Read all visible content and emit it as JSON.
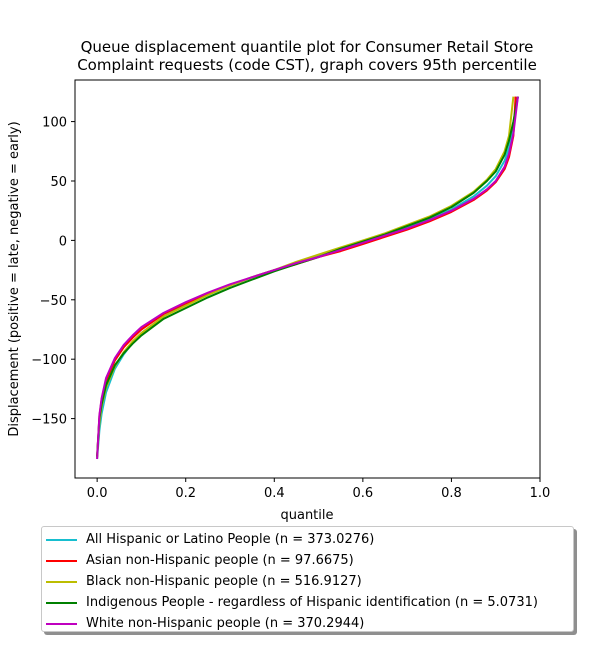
{
  "chart_data": {
    "type": "line",
    "title": "Queue displacement quantile plot for Consumer Retail Store",
    "subtitle": "Complaint  requests (code CST), graph covers 95th percentile",
    "xlabel": "quantile",
    "ylabel": "Displacement (positive = late, negative = early)",
    "xlim": [
      -0.05,
      1.0
    ],
    "ylim": [
      -200,
      135
    ],
    "xticks": [
      "0.0",
      "0.2",
      "0.4",
      "0.6",
      "0.8",
      "1.0"
    ],
    "yticks": [
      "100",
      "50",
      "0",
      "−50",
      "−100",
      "−150"
    ],
    "grid": false,
    "legend_position": "bottom (below plot)",
    "series": [
      {
        "name": "All Hispanic or Latino People (n = 373.0276)",
        "color": "#17becf",
        "x": [
          0.0,
          0.005,
          0.01,
          0.02,
          0.04,
          0.06,
          0.08,
          0.1,
          0.15,
          0.2,
          0.25,
          0.3,
          0.35,
          0.4,
          0.45,
          0.5,
          0.55,
          0.6,
          0.65,
          0.7,
          0.75,
          0.8,
          0.85,
          0.88,
          0.9,
          0.92,
          0.93,
          0.94,
          0.95
        ],
        "y": [
          -184,
          -160,
          -146,
          -128,
          -108,
          -96,
          -86,
          -78,
          -64,
          -54,
          -46,
          -38,
          -31,
          -25,
          -19,
          -13,
          -7,
          -1,
          5,
          11,
          18,
          26,
          37,
          46,
          54,
          67,
          78,
          95,
          121
        ]
      },
      {
        "name": "Asian non-Hispanic people (n = 97.6675)",
        "color": "#ff0000",
        "x": [
          0.0,
          0.005,
          0.01,
          0.02,
          0.04,
          0.06,
          0.08,
          0.1,
          0.15,
          0.2,
          0.25,
          0.3,
          0.35,
          0.4,
          0.45,
          0.5,
          0.55,
          0.6,
          0.65,
          0.7,
          0.75,
          0.8,
          0.85,
          0.88,
          0.9,
          0.92,
          0.93,
          0.94,
          0.945
        ],
        "y": [
          -182,
          -148,
          -134,
          -118,
          -101,
          -90,
          -82,
          -75,
          -62,
          -53,
          -45,
          -38,
          -31,
          -25,
          -20,
          -14,
          -9,
          -3,
          3,
          9,
          16,
          24,
          34,
          42,
          49,
          60,
          70,
          88,
          121
        ]
      },
      {
        "name": "Black non-Hispanic people (n = 516.9127)",
        "color": "#bcbd00",
        "x": [
          0.0,
          0.005,
          0.01,
          0.02,
          0.04,
          0.06,
          0.08,
          0.1,
          0.15,
          0.2,
          0.25,
          0.3,
          0.35,
          0.4,
          0.45,
          0.5,
          0.55,
          0.6,
          0.65,
          0.7,
          0.75,
          0.8,
          0.85,
          0.88,
          0.9,
          0.92,
          0.93,
          0.94
        ],
        "y": [
          -183,
          -154,
          -140,
          -124,
          -106,
          -94,
          -85,
          -78,
          -64,
          -55,
          -46,
          -38,
          -31,
          -25,
          -18,
          -12,
          -6,
          0,
          6,
          13,
          20,
          29,
          41,
          51,
          60,
          75,
          88,
          121
        ]
      },
      {
        "name": "Indigenous People - regardless of Hispanic identification (n = 5.0731)",
        "color": "#008000",
        "x": [
          0.0,
          0.005,
          0.01,
          0.02,
          0.04,
          0.06,
          0.08,
          0.1,
          0.15,
          0.2,
          0.25,
          0.3,
          0.35,
          0.4,
          0.45,
          0.5,
          0.55,
          0.6,
          0.65,
          0.7,
          0.75,
          0.8,
          0.85,
          0.88,
          0.9,
          0.92,
          0.93,
          0.94,
          0.95
        ],
        "y": [
          -182,
          -150,
          -138,
          -122,
          -105,
          -95,
          -87,
          -80,
          -66,
          -57,
          -48,
          -40,
          -33,
          -26,
          -20,
          -14,
          -7,
          -1,
          5,
          12,
          19,
          28,
          40,
          50,
          58,
          72,
          84,
          100,
          121
        ]
      },
      {
        "name": "White non-Hispanic people (n = 370.2944)",
        "color": "#bf00bf",
        "x": [
          0.0,
          0.005,
          0.01,
          0.02,
          0.04,
          0.06,
          0.08,
          0.1,
          0.15,
          0.2,
          0.25,
          0.3,
          0.35,
          0.4,
          0.45,
          0.5,
          0.55,
          0.6,
          0.65,
          0.7,
          0.75,
          0.8,
          0.85,
          0.88,
          0.9,
          0.92,
          0.93,
          0.94,
          0.95
        ],
        "y": [
          -184,
          -147,
          -133,
          -116,
          -99,
          -88,
          -80,
          -73,
          -61,
          -52,
          -44,
          -37,
          -31,
          -25,
          -19,
          -14,
          -8,
          -2,
          4,
          10,
          17,
          25,
          35,
          43,
          50,
          62,
          73,
          90,
          121
        ]
      }
    ]
  }
}
